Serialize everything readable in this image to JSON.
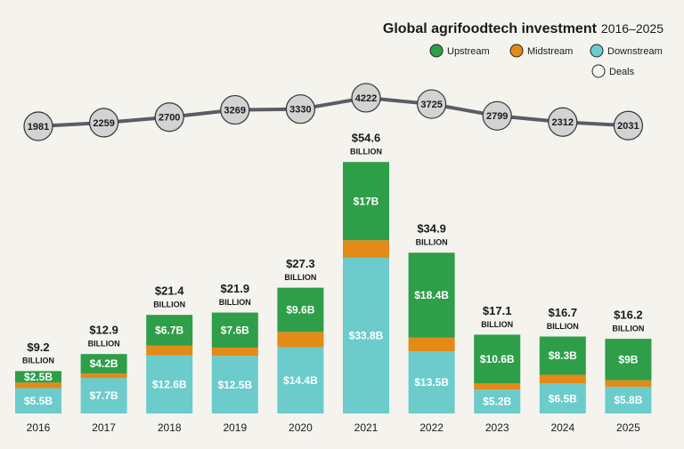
{
  "chart_data": {
    "type": "stacked-bar-line",
    "title": "Global agrifoodtech investment",
    "subtitle": "2016–2025",
    "categories": [
      "2016",
      "2017",
      "2018",
      "2019",
      "2020",
      "2021",
      "2022",
      "2023",
      "2024",
      "2025"
    ],
    "series": [
      {
        "name": "Downstream",
        "color": "#6ccbcb",
        "values": [
          5.5,
          7.7,
          12.6,
          12.5,
          14.4,
          33.8,
          13.5,
          5.2,
          6.5,
          5.8
        ],
        "value_labels": [
          "$5.5B",
          "$7.7B",
          "$12.6B",
          "$12.5B",
          "$14.4B",
          "$33.8B",
          "$13.5B",
          "$5.2B",
          "$6.5B",
          "$5.8B"
        ]
      },
      {
        "name": "Midstream",
        "color": "#e38a17",
        "values": [
          1.2,
          1.0,
          2.1,
          1.8,
          3.3,
          3.8,
          3.0,
          1.3,
          1.9,
          1.4
        ]
      },
      {
        "name": "Upstream",
        "color": "#2e9e48",
        "values": [
          2.5,
          4.2,
          6.7,
          7.6,
          9.6,
          17,
          18.4,
          10.6,
          8.3,
          9
        ],
        "value_labels": [
          "$2.5B",
          "$4.2B",
          "$6.7B",
          "$7.6B",
          "$9.6B",
          "$17B",
          "$18.4B",
          "$10.6B",
          "$8.3B",
          "$9B"
        ]
      }
    ],
    "totals": {
      "values": [
        9.2,
        12.9,
        21.4,
        21.9,
        27.3,
        54.6,
        34.9,
        17.1,
        16.7,
        16.2
      ],
      "value_labels": [
        "$9.2",
        "$12.9",
        "$21.4",
        "$21.9",
        "$27.3",
        "$54.6",
        "$34.9",
        "$17.1",
        "$16.7",
        "$16.2"
      ],
      "unit": "BILLION"
    },
    "deals": {
      "name": "Deals",
      "values": [
        1981,
        2259,
        2700,
        3269,
        3330,
        4222,
        3725,
        2799,
        2312,
        2031
      ]
    },
    "legend_position": "top-right"
  }
}
